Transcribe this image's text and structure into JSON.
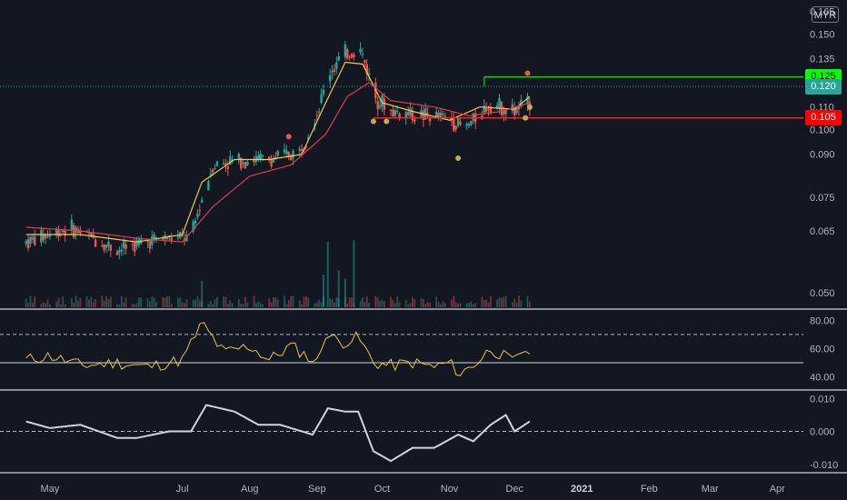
{
  "currency": "MYR",
  "colors": {
    "background": "#131722",
    "up": "#26a69a",
    "down": "#ef5350",
    "ma_fast": "#f2c94c",
    "ma_slow": "#e5394d",
    "resistance": "#00e000",
    "support": "#ff1f1f",
    "current": "#26a69a",
    "rsi": "#e8c547",
    "oscillator": "#d1d4dc"
  },
  "price_labels": {
    "resistance": "0.125",
    "current": "0.120",
    "support": "0.105"
  },
  "chart_data": [
    {
      "type": "candlestick",
      "panel": "price",
      "y_scale": "log",
      "y_ticks": [
        "0.050",
        "0.065",
        "0.075",
        "0.090",
        "0.100",
        "0.110",
        "0.125",
        "0.135",
        "0.150",
        "0.165"
      ],
      "ylim": [
        0.047,
        0.168
      ],
      "x_labels": [
        "May",
        "Jul",
        "Aug",
        "Sep",
        "Oct",
        "Nov",
        "Dec",
        "2021",
        "Feb",
        "Mar",
        "Apr"
      ],
      "x_label_months": [
        "2020-05",
        "2020-07",
        "2020-08",
        "2020-09",
        "2020-10",
        "2020-11",
        "2020-12",
        "2021-01",
        "2021-02",
        "2021-03",
        "2021-04"
      ],
      "trend": {
        "x": [
          "2020-04-20",
          "2020-05-10",
          "2020-06-01",
          "2020-06-20",
          "2020-07-05",
          "2020-07-15",
          "2020-07-28",
          "2020-08-10",
          "2020-08-24",
          "2020-09-02",
          "2020-09-07",
          "2020-09-14",
          "2020-09-21",
          "2020-09-28",
          "2020-10-05",
          "2020-10-20",
          "2020-11-01",
          "2020-11-08",
          "2020-11-20",
          "2020-12-01",
          "2020-12-08"
        ],
        "y": [
          0.062,
          0.066,
          0.06,
          0.063,
          0.063,
          0.086,
          0.088,
          0.088,
          0.091,
          0.11,
          0.128,
          0.138,
          0.14,
          0.115,
          0.108,
          0.106,
          0.105,
          0.1,
          0.112,
          0.108,
          0.112
        ]
      },
      "series": [
        {
          "name": "",
          "kind": "ma_fast",
          "x": [
            "2020-04-20",
            "2020-05-15",
            "2020-06-10",
            "2020-07-01",
            "2020-07-10",
            "2020-07-25",
            "2020-08-10",
            "2020-08-25",
            "2020-09-05",
            "2020-09-14",
            "2020-09-22",
            "2020-10-01",
            "2020-10-15",
            "2020-11-01",
            "2020-11-15",
            "2020-12-01",
            "2020-12-08"
          ],
          "y": [
            0.064,
            0.064,
            0.062,
            0.064,
            0.08,
            0.088,
            0.088,
            0.09,
            0.112,
            0.133,
            0.132,
            0.112,
            0.108,
            0.104,
            0.11,
            0.109,
            0.115
          ]
        },
        {
          "name": "",
          "kind": "ma_slow",
          "x": [
            "2020-04-20",
            "2020-05-15",
            "2020-06-10",
            "2020-07-01",
            "2020-07-15",
            "2020-08-01",
            "2020-08-20",
            "2020-09-05",
            "2020-09-15",
            "2020-09-25",
            "2020-10-05",
            "2020-10-25",
            "2020-11-10",
            "2020-11-25",
            "2020-12-08"
          ],
          "y": [
            0.066,
            0.065,
            0.063,
            0.062,
            0.072,
            0.082,
            0.086,
            0.098,
            0.115,
            0.122,
            0.113,
            0.11,
            0.106,
            0.108,
            0.112
          ]
        }
      ],
      "levels": {
        "resistance": 0.125,
        "current": 0.12,
        "support": 0.105,
        "resistance_start": "2020-11-17",
        "support_start": "2020-09-27"
      },
      "markers": [
        {
          "x": "2020-08-19",
          "y": 0.097,
          "color": "#ef5350"
        },
        {
          "x": "2020-09-27",
          "y": 0.1035,
          "color": "#c9a84c"
        },
        {
          "x": "2020-10-03",
          "y": 0.1035,
          "color": "#c9a84c"
        },
        {
          "x": "2020-11-05",
          "y": 0.0885,
          "color": "#c9a84c"
        },
        {
          "x": "2020-12-06",
          "y": 0.105,
          "color": "#c9a84c"
        },
        {
          "x": "2020-12-07",
          "y": 0.127,
          "color": "#ef5350"
        },
        {
          "x": "2020-12-08",
          "y": 0.11,
          "color": "#c9a84c"
        }
      ],
      "volume_spikes": [
        {
          "x": "2020-09-06",
          "v": 0.8
        },
        {
          "x": "2020-09-11",
          "v": 0.45
        },
        {
          "x": "2020-09-18",
          "v": 0.82
        },
        {
          "x": "2020-09-14",
          "v": 0.35
        },
        {
          "x": "2020-07-10",
          "v": 0.32
        },
        {
          "x": "2020-09-04",
          "v": 0.4
        }
      ]
    },
    {
      "type": "line",
      "panel": "rsi",
      "y_ticks": [
        "80.00",
        "60.00",
        "40.00"
      ],
      "ylim": [
        32,
        86
      ],
      "bands": [
        70,
        50
      ],
      "x": [
        "2020-04-20",
        "2020-05-01",
        "2020-05-15",
        "2020-06-01",
        "2020-06-15",
        "2020-07-01",
        "2020-07-10",
        "2020-07-20",
        "2020-08-01",
        "2020-08-10",
        "2020-08-20",
        "2020-09-01",
        "2020-09-05",
        "2020-09-12",
        "2020-09-20",
        "2020-09-27",
        "2020-10-05",
        "2020-10-15",
        "2020-10-25",
        "2020-11-01",
        "2020-11-06",
        "2020-11-15",
        "2020-11-20",
        "2020-12-01",
        "2020-12-05",
        "2020-12-08"
      ],
      "y": [
        52,
        55,
        48,
        50,
        47,
        52,
        78,
        57,
        62,
        52,
        62,
        50,
        71,
        64,
        68,
        50,
        48,
        50,
        47,
        50,
        42,
        52,
        60,
        50,
        60,
        58
      ]
    },
    {
      "type": "line",
      "panel": "oscillator",
      "y_ticks": [
        "0.010",
        "0.000",
        "-0.010"
      ],
      "ylim": [
        -0.012,
        0.012
      ],
      "zero_line": 0.0,
      "x": [
        "2020-04-20",
        "2020-05-01",
        "2020-05-15",
        "2020-06-01",
        "2020-06-10",
        "2020-06-25",
        "2020-07-05",
        "2020-07-12",
        "2020-07-25",
        "2020-08-05",
        "2020-08-15",
        "2020-08-30",
        "2020-09-06",
        "2020-09-14",
        "2020-09-20",
        "2020-09-27",
        "2020-10-05",
        "2020-10-15",
        "2020-10-25",
        "2020-11-05",
        "2020-11-12",
        "2020-11-20",
        "2020-11-27",
        "2020-12-01",
        "2020-12-08"
      ],
      "y": [
        0.003,
        0.001,
        0.002,
        -0.002,
        -0.002,
        0.0,
        0.0,
        0.008,
        0.006,
        0.002,
        0.002,
        -0.001,
        0.007,
        0.006,
        0.006,
        -0.006,
        -0.009,
        -0.005,
        -0.005,
        -0.001,
        -0.003,
        0.002,
        0.005,
        0.0,
        0.003
      ]
    }
  ]
}
